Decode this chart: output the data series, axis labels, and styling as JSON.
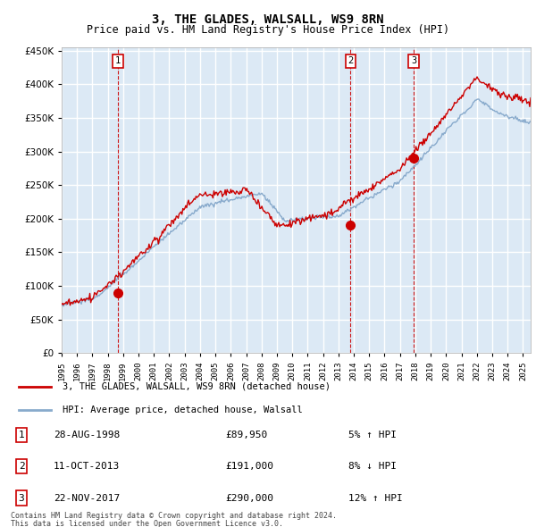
{
  "title": "3, THE GLADES, WALSALL, WS9 8RN",
  "subtitle": "Price paid vs. HM Land Registry's House Price Index (HPI)",
  "x_start_year": 1995,
  "x_end_year": 2025,
  "y_min": 0,
  "y_max": 450000,
  "y_ticks": [
    0,
    50000,
    100000,
    150000,
    200000,
    250000,
    300000,
    350000,
    400000,
    450000
  ],
  "plot_bg_color": "#dce9f5",
  "line_color_red": "#cc0000",
  "line_color_blue": "#88aacc",
  "grid_color": "#ffffff",
  "sale_marker_color": "#cc0000",
  "purchases": [
    {
      "label": "1",
      "date": "28-AUG-1998",
      "price": 89950,
      "year": 1998.63,
      "pct": "5%",
      "dir": "↑"
    },
    {
      "label": "2",
      "date": "11-OCT-2013",
      "price": 191000,
      "year": 2013.78,
      "pct": "8%",
      "dir": "↓"
    },
    {
      "label": "3",
      "date": "22-NOV-2017",
      "price": 290000,
      "year": 2017.88,
      "pct": "12%",
      "dir": "↑"
    }
  ],
  "legend_line1": "3, THE GLADES, WALSALL, WS9 8RN (detached house)",
  "legend_line2": "HPI: Average price, detached house, Walsall",
  "footer1": "Contains HM Land Registry data © Crown copyright and database right 2024.",
  "footer2": "This data is licensed under the Open Government Licence v3.0."
}
